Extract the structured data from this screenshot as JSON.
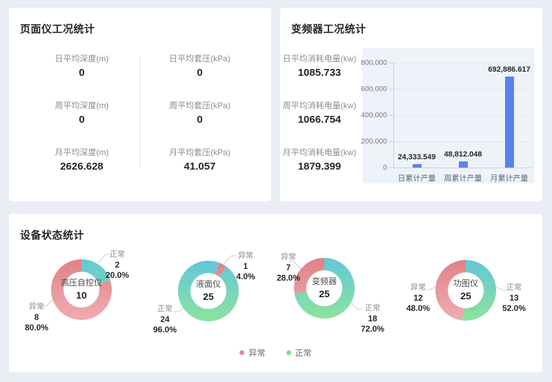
{
  "panels": {
    "page_meter": {
      "title": "页面仪工况统计",
      "stats_left": [
        {
          "label": "日平均深度(m)",
          "value": "0"
        },
        {
          "label": "周平均深度(m)",
          "value": "0"
        },
        {
          "label": "月平均深度(m)",
          "value": "2626.628"
        }
      ],
      "stats_right": [
        {
          "label": "日平均套压(kPa)",
          "value": "0"
        },
        {
          "label": "周平均套压(kPa)",
          "value": "0"
        },
        {
          "label": "月平均套压(kPa)",
          "value": "41.057"
        }
      ]
    },
    "inverter": {
      "title": "变频器工况统计",
      "stats": [
        {
          "label": "日平均消耗电量(kw)",
          "value": "1085.733"
        },
        {
          "label": "周平均消耗电量(kw)",
          "value": "1066.754"
        },
        {
          "label": "月平均消耗电量(kw)",
          "value": "1879.399"
        }
      ]
    },
    "device_status": {
      "title": "设备状态统计",
      "legend": [
        {
          "label": "异常",
          "color": "#e58c8e"
        },
        {
          "label": "正常",
          "color": "#7dde92"
        }
      ]
    }
  },
  "chart_data": [
    {
      "type": "bar",
      "title": "变频器工况统计",
      "categories": [
        "日累计产量",
        "周累计产量",
        "月累计产量"
      ],
      "values": [
        24333.549,
        48812.048,
        692886.617
      ],
      "value_labels": [
        "24,333.549",
        "48,812.048",
        "692,886.617"
      ],
      "xlabel": "",
      "ylabel": "",
      "ylim": [
        0,
        800000
      ],
      "ytick_labels": [
        "0",
        "200,000",
        "400,000",
        "600,000",
        "800,000"
      ],
      "grid": true,
      "legend_position": "none"
    },
    {
      "type": "pie",
      "subtype": "donut",
      "name": "高压自控仪",
      "total": 10,
      "slices": [
        {
          "label": "正常",
          "value": 2,
          "pct": "20.0%"
        },
        {
          "label": "异常",
          "value": 8,
          "pct": "80.0%"
        }
      ]
    },
    {
      "type": "pie",
      "subtype": "donut",
      "name": "液面仪",
      "total": 25,
      "slices": [
        {
          "label": "正常",
          "value": 24,
          "pct": "96.0%"
        },
        {
          "label": "异常",
          "value": 1,
          "pct": "4.0%"
        }
      ]
    },
    {
      "type": "pie",
      "subtype": "donut",
      "name": "变频器",
      "total": 25,
      "slices": [
        {
          "label": "正常",
          "value": 18,
          "pct": "72.0%"
        },
        {
          "label": "异常",
          "value": 7,
          "pct": "28.0%"
        }
      ]
    },
    {
      "type": "pie",
      "subtype": "donut",
      "name": "功图仪",
      "total": 25,
      "slices": [
        {
          "label": "正常",
          "value": 13,
          "pct": "52.0%"
        },
        {
          "label": "异常",
          "value": 12,
          "pct": "48.0%"
        }
      ]
    }
  ],
  "colors": {
    "bar": "#5b82ec",
    "chart_bg": "#eef3fa",
    "page_bg": "#e9edf4",
    "normal_gradient": [
      "#63c7d9",
      "#8ce39b"
    ],
    "abnormal_gradient": [
      "#df8287",
      "#efadb2"
    ]
  }
}
